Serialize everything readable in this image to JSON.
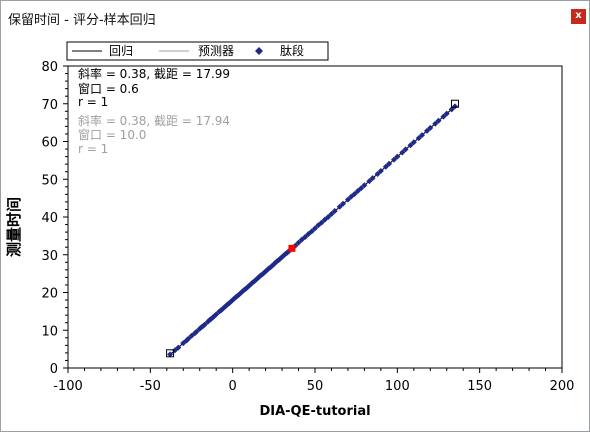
{
  "window": {
    "title": "保留时间 - 评分-样本回归",
    "close_label": "x"
  },
  "legend": {
    "regression_label": "回归",
    "predictor_label": "预测器",
    "peptide_label": "肽段"
  },
  "stats_primary": {
    "line1": "斜率 = 0.38, 截距 = 17.99",
    "line2": "窗口 = 0.6",
    "line3": "r = 1"
  },
  "stats_secondary": {
    "line1": "斜率 = 0.38, 截距 = 17.94",
    "line2": "窗口 = 10.0",
    "line3": "r = 1"
  },
  "colors": {
    "points": "#1e2a8a",
    "highlight": "#ff0000",
    "regression_line": "#000000",
    "predictor_line": "#a0a0a0",
    "secondary_text": "#a0a0a0"
  },
  "chart_data": {
    "type": "scatter",
    "title": "",
    "xlabel": "DIA-QE-tutorial",
    "ylabel": "测量时间",
    "xlim": [
      -100,
      200
    ],
    "ylim": [
      0,
      80
    ],
    "x_ticks": [
      "-100",
      "-50",
      "0",
      "50",
      "100",
      "150",
      "200"
    ],
    "y_ticks": [
      "0",
      "10",
      "20",
      "30",
      "40",
      "50",
      "60",
      "70",
      "80"
    ],
    "grid": false,
    "legend_position": "top-left",
    "regression": {
      "slope": 0.38,
      "intercept": 17.99,
      "x_range": [
        -38,
        135
      ]
    },
    "predictor": {
      "slope": 0.38,
      "intercept": 17.94,
      "x_range": [
        -38,
        135
      ]
    },
    "series": [
      {
        "name": "肽段",
        "x": [
          -38,
          -35,
          -33,
          -30,
          -28,
          -27,
          -25,
          -23,
          -22,
          -20,
          -19,
          -18,
          -17,
          -15,
          -14,
          -13,
          -12,
          -11,
          -10,
          -8,
          -7,
          -6,
          -5,
          -4,
          -3,
          -2,
          -1,
          0,
          1,
          2,
          3,
          4,
          5,
          6,
          7,
          8,
          9,
          10,
          11,
          12,
          13,
          14,
          15,
          16,
          17,
          18,
          19,
          20,
          21,
          22,
          23,
          24,
          25,
          26,
          27,
          28,
          29,
          30,
          31,
          32,
          33,
          34,
          35,
          38,
          40,
          42,
          44,
          46,
          48,
          50,
          52,
          54,
          56,
          58,
          60,
          62,
          65,
          67,
          70,
          72,
          74,
          76,
          78,
          80,
          83,
          85,
          88,
          90,
          93,
          95,
          98,
          100,
          103,
          105,
          108,
          110,
          113,
          115,
          118,
          120,
          123,
          125,
          128,
          130,
          133,
          135
        ],
        "y": [
          3.6,
          4.7,
          5.4,
          6.6,
          7.3,
          7.7,
          8.5,
          9.2,
          9.6,
          10.4,
          10.8,
          11.1,
          11.5,
          12.3,
          12.7,
          13.0,
          13.4,
          13.8,
          14.2,
          15.0,
          15.3,
          15.7,
          16.1,
          16.5,
          16.9,
          17.2,
          17.6,
          18.0,
          18.4,
          18.8,
          19.1,
          19.5,
          19.9,
          20.3,
          20.7,
          21.0,
          21.4,
          21.8,
          22.2,
          22.6,
          22.9,
          23.3,
          23.7,
          24.1,
          24.5,
          24.8,
          25.2,
          25.6,
          26.0,
          26.4,
          26.7,
          27.1,
          27.5,
          27.9,
          28.3,
          28.6,
          29.0,
          29.4,
          29.8,
          30.2,
          30.5,
          30.9,
          31.3,
          32.4,
          33.2,
          34.0,
          34.7,
          35.5,
          36.2,
          37.0,
          37.8,
          38.5,
          39.3,
          40.0,
          40.8,
          41.6,
          42.7,
          43.5,
          44.6,
          45.4,
          46.1,
          46.9,
          47.6,
          48.4,
          49.5,
          50.3,
          51.4,
          52.2,
          53.3,
          54.1,
          55.2,
          56.0,
          57.1,
          57.9,
          59.0,
          59.8,
          60.9,
          61.7,
          62.8,
          63.6,
          64.7,
          65.5,
          66.6,
          67.4,
          68.5,
          69.3
        ]
      }
    ],
    "highlight_point": {
      "x": 36,
      "y": 31.7
    },
    "outliers": [
      {
        "x": -38,
        "y": 3.9
      },
      {
        "x": 135,
        "y": 70.0
      }
    ]
  }
}
